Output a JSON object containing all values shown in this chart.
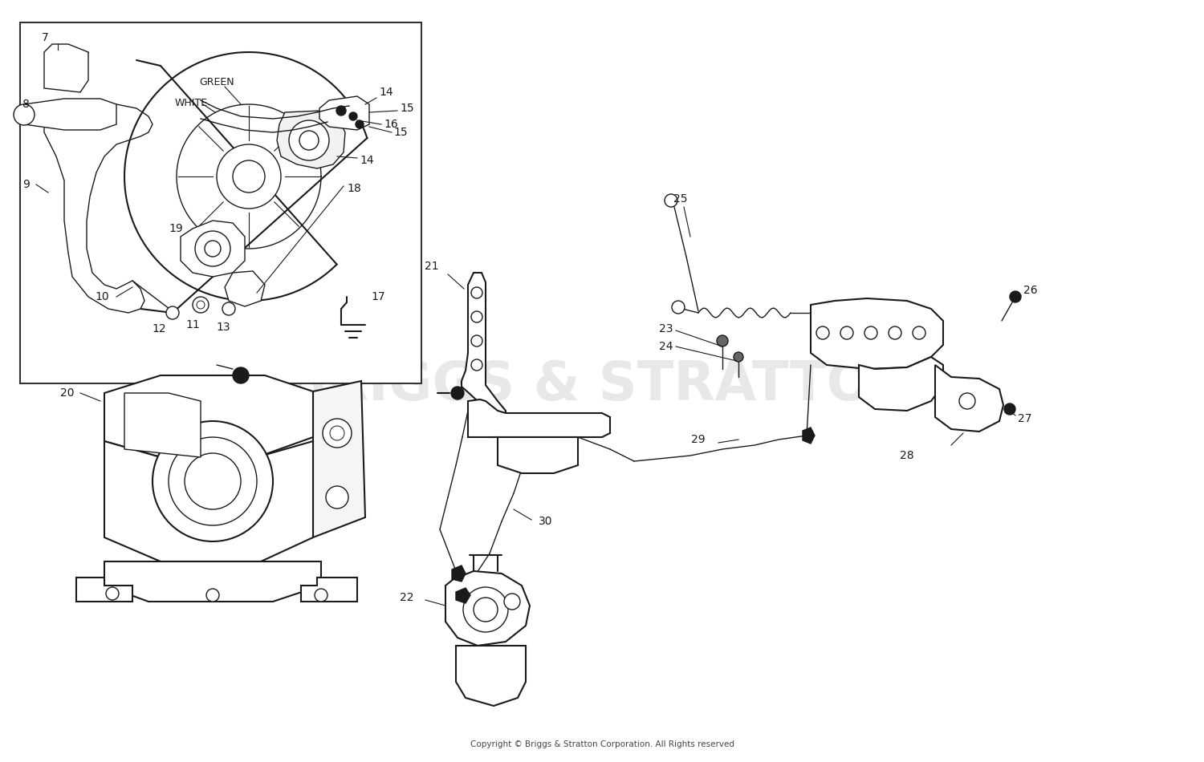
{
  "copyright": "Copyright © Briggs & Stratton Corporation. All Rights reserved",
  "background_color": "#ffffff",
  "line_color": "#1a1a1a",
  "watermark_color": "#dadada",
  "copyright_fontsize": 7.5,
  "label_fontsize": 10,
  "fig_width": 15.0,
  "fig_height": 9.5,
  "dpi": 100
}
